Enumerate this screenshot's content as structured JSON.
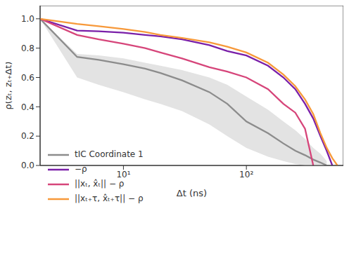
{
  "chart_data": {
    "type": "line",
    "x_label": "Δt (ns)",
    "y_label": "ρ(zₜ, zₜ₊Δt)",
    "log": "x",
    "grid": false,
    "legend": "lower left",
    "xlim": [
      2.1,
      615
    ],
    "xticks": [
      {
        "value": 10,
        "label": "10¹"
      },
      {
        "value": 100,
        "label": "10²"
      }
    ],
    "ylim": [
      0,
      1.09
    ],
    "yticks": [
      {
        "value": 0,
        "label": "0.0"
      },
      0.2,
      0.4,
      0.6,
      0.8,
      {
        "value": 1,
        "label": "1.0"
      }
    ],
    "x": [
      2.1,
      4.2,
      6.3,
      10,
      15,
      20,
      30,
      50,
      70,
      100,
      150,
      200,
      250,
      300,
      350,
      400,
      450,
      500,
      550
    ],
    "series": [
      {
        "name": "tIC Coordinate 1",
        "color": "#8c8c8c",
        "values": [
          1.0,
          0.74,
          0.72,
          0.69,
          0.66,
          0.63,
          0.58,
          0.5,
          0.42,
          0.3,
          0.22,
          0.15,
          0.1,
          0.07,
          0.04,
          0.02,
          0.0,
          null,
          null
        ],
        "band": [
          [
            1.0,
            1.0
          ],
          [
            0.6,
            0.76
          ],
          [
            0.55,
            0.75
          ],
          [
            0.5,
            0.73
          ],
          [
            0.45,
            0.7
          ],
          [
            0.42,
            0.68
          ],
          [
            0.37,
            0.65
          ],
          [
            0.28,
            0.6
          ],
          [
            0.2,
            0.55
          ],
          [
            0.12,
            0.47
          ],
          [
            0.06,
            0.38
          ],
          [
            0.03,
            0.3
          ],
          [
            0.01,
            0.24
          ],
          [
            0.0,
            0.18
          ],
          [
            0.0,
            0.12
          ],
          [
            0.0,
            0.08
          ],
          [
            0.0,
            0.03
          ],
          null,
          null
        ],
        "band_color": "#e3e3e3"
      },
      {
        "name": "−ρ",
        "color": "#7a1fa8",
        "values": [
          1.0,
          0.92,
          0.915,
          0.905,
          0.89,
          0.88,
          0.86,
          0.82,
          0.78,
          0.75,
          0.68,
          0.6,
          0.52,
          0.42,
          0.32,
          0.2,
          0.1,
          0.0,
          null
        ]
      },
      {
        "name": "||xₜ, x̂ₜ|| − ρ",
        "color": "#d6457a",
        "values": [
          1.0,
          0.89,
          0.86,
          0.83,
          0.8,
          0.77,
          0.73,
          0.67,
          0.64,
          0.6,
          0.52,
          0.42,
          0.36,
          0.25,
          0.0,
          null,
          null,
          null,
          null
        ]
      },
      {
        "name": "||xₜ₊τ, x̂ₜ₊τ|| − ρ",
        "color": "#f7993a",
        "values": [
          1.0,
          0.965,
          0.95,
          0.93,
          0.91,
          0.89,
          0.87,
          0.84,
          0.81,
          0.77,
          0.7,
          0.62,
          0.54,
          0.45,
          0.35,
          0.22,
          0.12,
          0.05,
          0.0
        ]
      }
    ]
  }
}
